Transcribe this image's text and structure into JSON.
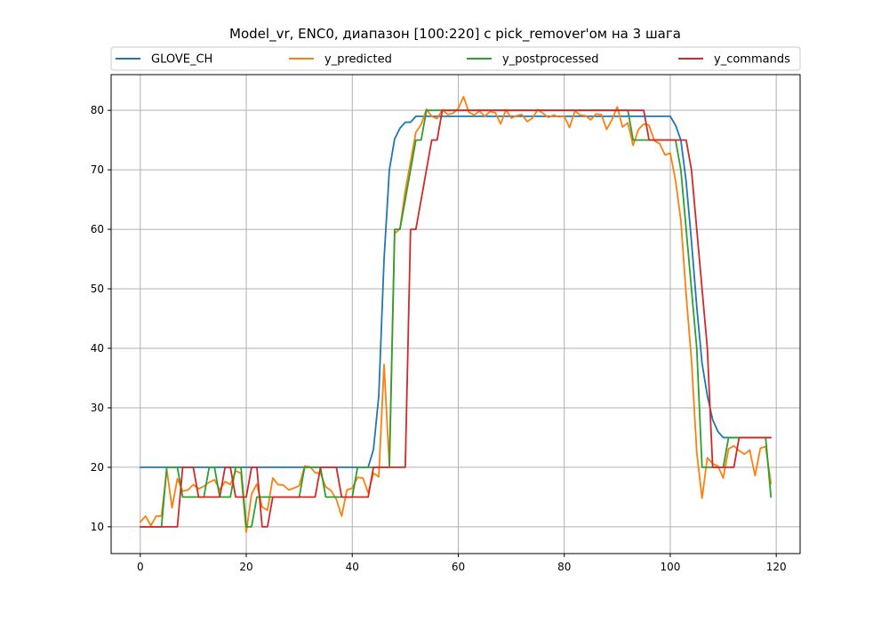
{
  "chart_data": {
    "type": "line",
    "title": "Model_vr, ENC0, диапазон [100:220] с pick_remover'ом на 3 шага",
    "xlabel": "",
    "ylabel": "",
    "xlim": [
      -5.5,
      124.5
    ],
    "ylim": [
      5.5,
      86.0
    ],
    "xticks": [
      0,
      20,
      40,
      60,
      80,
      100,
      120
    ],
    "yticks": [
      10,
      20,
      30,
      40,
      50,
      60,
      70,
      80
    ],
    "grid": true,
    "legend_position": "top",
    "series": [
      {
        "name": "GLOVE_CH",
        "color": "#1f77b4",
        "segments": [
          [
            0,
            20
          ],
          [
            43,
            20
          ],
          [
            44,
            23
          ],
          [
            45,
            32
          ],
          [
            46,
            55
          ],
          [
            47,
            70
          ],
          [
            48,
            75.2
          ],
          [
            49,
            77
          ],
          [
            50,
            78
          ],
          [
            51,
            78
          ],
          [
            52,
            79
          ],
          [
            55,
            79
          ],
          [
            100,
            79
          ],
          [
            101,
            77.5
          ],
          [
            102,
            75
          ],
          [
            103,
            68
          ],
          [
            104,
            58
          ],
          [
            105,
            47
          ],
          [
            106,
            37.5
          ],
          [
            107,
            32
          ],
          [
            108,
            28
          ],
          [
            109,
            26
          ],
          [
            110,
            25
          ],
          [
            119,
            25
          ]
        ]
      },
      {
        "name": "y_predicted",
        "color": "#ff7f0e",
        "values": [
          10.8,
          11.8,
          10.2,
          11.8,
          11.8,
          19.6,
          13.2,
          18.1,
          16,
          16.2,
          17.1,
          16.4,
          16.8,
          17.5,
          17.9,
          16.2,
          17.6,
          17.1,
          19.4,
          19,
          9.1,
          15.5,
          17.2,
          13.3,
          12.8,
          18.2,
          17.1,
          17,
          16.2,
          16.5,
          16.9,
          20.2,
          20.1,
          19.1,
          19,
          16.7,
          16.1,
          14.6,
          11.8,
          16.2,
          16.5,
          18.3,
          18.2,
          15.7,
          19,
          18.4,
          37.3,
          20.2,
          59.3,
          60.1,
          66.5,
          71.3,
          76.3,
          77.6,
          80.2,
          79,
          78.6,
          80.1,
          79.3,
          79.5,
          80.3,
          82.3,
          79.7,
          79.2,
          79.9,
          79,
          79.8,
          79.6,
          77.7,
          80.1,
          78.7,
          79.1,
          79.3,
          78.1,
          78.7,
          80.1,
          79.5,
          78.8,
          79.2,
          78.9,
          79,
          77.1,
          79.9,
          79.2,
          79.1,
          78.4,
          79.4,
          79.3,
          76.8,
          78.4,
          80.6,
          77.2,
          77.9,
          74.1,
          76.8,
          77.7,
          77.5,
          74.9,
          74.4,
          72.5,
          72.8,
          68.2,
          61.5,
          49,
          38.1,
          22.5,
          14.8,
          21.6,
          20.6,
          20.2,
          18.2,
          23.1,
          23.6,
          22.8,
          22.2,
          22.9,
          18.6,
          23.2,
          23.5,
          17.3
        ]
      },
      {
        "name": "y_postprocessed",
        "color": "#2ca02c",
        "values": [
          10,
          10,
          10,
          10,
          10,
          20,
          20,
          20,
          15,
          15,
          15,
          15,
          15,
          20,
          20,
          15,
          15,
          15,
          20,
          20,
          10,
          10,
          15,
          15,
          15,
          15,
          15,
          15,
          15,
          15,
          15,
          20,
          20,
          20,
          20,
          15,
          15,
          15,
          15,
          15,
          15,
          20,
          20,
          20,
          20,
          20,
          20,
          20,
          60,
          60,
          65,
          70,
          75,
          75,
          80,
          80,
          80,
          80,
          80,
          80,
          80,
          80,
          80,
          80,
          80,
          80,
          80,
          80,
          80,
          80,
          80,
          80,
          80,
          80,
          80,
          80,
          80,
          80,
          80,
          80,
          80,
          80,
          80,
          80,
          80,
          80,
          80,
          80,
          80,
          80,
          80,
          80,
          80,
          75,
          75,
          75,
          75,
          75,
          75,
          75,
          75,
          75,
          70,
          60,
          50,
          40,
          20,
          20,
          20,
          20,
          20,
          25,
          25,
          25,
          25,
          25,
          25,
          25,
          25,
          15
        ]
      },
      {
        "name": "y_commands",
        "color": "#d62728",
        "values": [
          10,
          10,
          10,
          10,
          10,
          10,
          10,
          10,
          20,
          20,
          20,
          15,
          15,
          15,
          15,
          15,
          20,
          20,
          15,
          15,
          15,
          20,
          20,
          10,
          10,
          15,
          15,
          15,
          15,
          15,
          15,
          15,
          15,
          15,
          20,
          20,
          20,
          20,
          15,
          15,
          15,
          15,
          15,
          15,
          20,
          20,
          20,
          20,
          20,
          20,
          20,
          60,
          60,
          65,
          70,
          75,
          75,
          80,
          80,
          80,
          80,
          80,
          80,
          80,
          80,
          80,
          80,
          80,
          80,
          80,
          80,
          80,
          80,
          80,
          80,
          80,
          80,
          80,
          80,
          80,
          80,
          80,
          80,
          80,
          80,
          80,
          80,
          80,
          80,
          80,
          80,
          80,
          80,
          80,
          80,
          80,
          75,
          75,
          75,
          75,
          75,
          75,
          75,
          75,
          70,
          60,
          50,
          40,
          20,
          20,
          20,
          20,
          20,
          25,
          25,
          25,
          25,
          25,
          25,
          25
        ]
      }
    ]
  }
}
